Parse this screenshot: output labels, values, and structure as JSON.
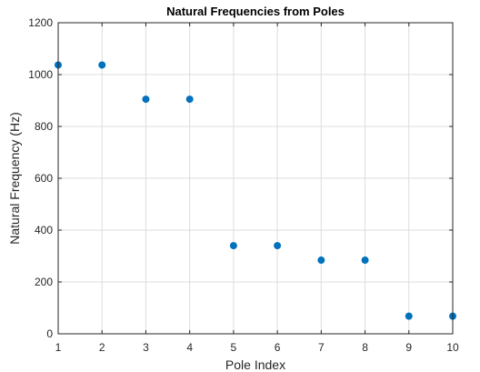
{
  "chart_data": {
    "type": "scatter",
    "title": "Natural Frequencies from Poles",
    "xlabel": "Pole Index",
    "ylabel": "Natural Frequency (Hz)",
    "xlim": [
      1,
      10
    ],
    "ylim": [
      0,
      1200
    ],
    "xticks": [
      1,
      2,
      3,
      4,
      5,
      6,
      7,
      8,
      9,
      10
    ],
    "yticks": [
      0,
      200,
      400,
      600,
      800,
      1000,
      1200
    ],
    "grid": true,
    "legend": "none",
    "series": [
      {
        "color": "#0072BD",
        "x": [
          1,
          2,
          3,
          4,
          5,
          6,
          7,
          8,
          9,
          10
        ],
        "y": [
          1037,
          1037,
          905,
          905,
          340,
          340,
          284,
          284,
          68,
          68
        ]
      }
    ]
  }
}
